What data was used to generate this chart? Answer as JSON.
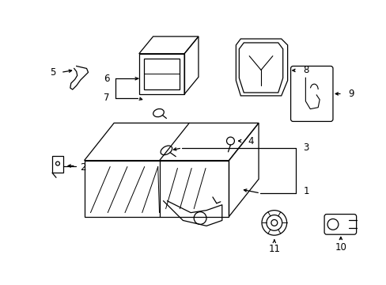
{
  "bg_color": "#ffffff",
  "line_color": "#000000",
  "figsize": [
    4.89,
    3.6
  ],
  "dpi": 100,
  "font_size": 8.5
}
